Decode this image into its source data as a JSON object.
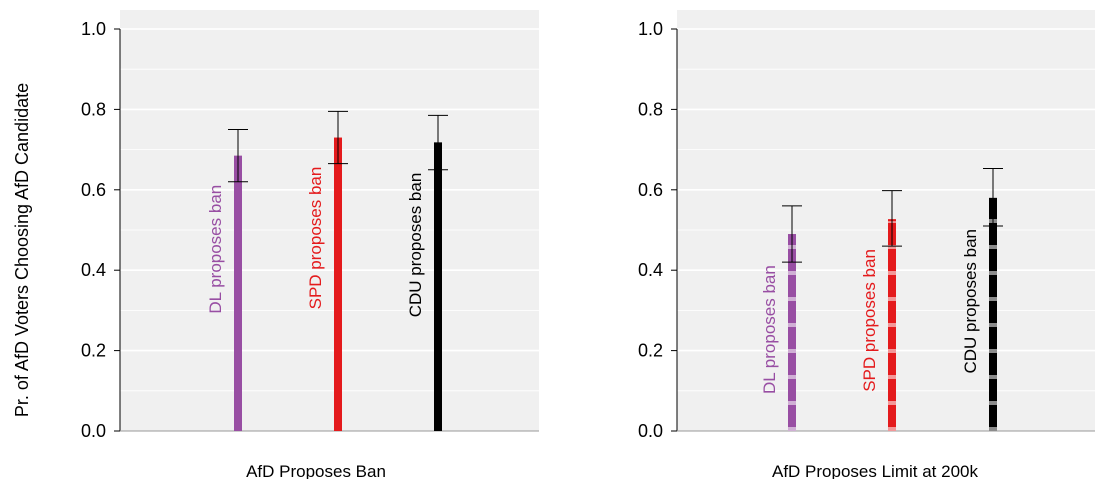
{
  "ylabel": "Pr. of AfD Voters Choosing AfD Candidate",
  "chart_data": [
    {
      "type": "bar",
      "xlabel": "AfD Proposes Ban",
      "ylim": [
        0,
        1.0
      ],
      "yticks": [
        "0.0",
        "0.2",
        "0.4",
        "0.6",
        "0.8",
        "1.0"
      ],
      "grid": true,
      "bar_style": "solid",
      "series": [
        {
          "name": "DL proposes ban",
          "color": "#984EA3",
          "value": 0.685,
          "ci_low": 0.62,
          "ci_high": 0.75
        },
        {
          "name": "SPD proposes ban",
          "color": "#E41A1C",
          "value": 0.73,
          "ci_low": 0.665,
          "ci_high": 0.795
        },
        {
          "name": "CDU proposes ban",
          "color": "#000000",
          "value": 0.718,
          "ci_low": 0.65,
          "ci_high": 0.785
        }
      ]
    },
    {
      "type": "bar",
      "xlabel": "AfD Proposes Limit at 200k",
      "ylim": [
        0,
        1.0
      ],
      "yticks": [
        "0.0",
        "0.2",
        "0.4",
        "0.6",
        "0.8",
        "1.0"
      ],
      "grid": true,
      "bar_style": "dashed",
      "series": [
        {
          "name": "DL proposes ban",
          "color": "#984EA3",
          "value": 0.49,
          "ci_low": 0.42,
          "ci_high": 0.56
        },
        {
          "name": "SPD proposes ban",
          "color": "#E41A1C",
          "value": 0.527,
          "ci_low": 0.46,
          "ci_high": 0.598
        },
        {
          "name": "CDU proposes ban",
          "color": "#000000",
          "value": 0.58,
          "ci_low": 0.51,
          "ci_high": 0.653
        }
      ]
    }
  ]
}
